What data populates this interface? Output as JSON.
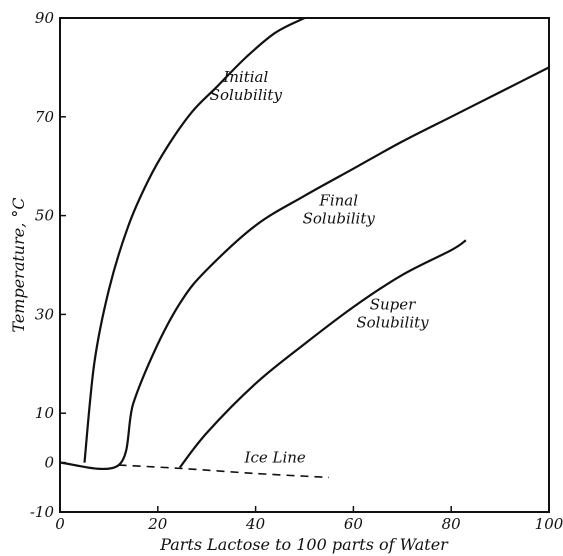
{
  "chart_data": {
    "type": "line",
    "xlabel": "Parts Lactose to 100 parts of Water",
    "ylabel": "Temperature, °C",
    "xlim": [
      0,
      100
    ],
    "ylim": [
      -10,
      90
    ],
    "x_ticks": [
      0,
      20,
      40,
      60,
      80,
      100
    ],
    "y_ticks": [
      -10,
      0,
      10,
      30,
      50,
      70,
      90
    ],
    "x_tick_labels": [
      "0",
      "20",
      "40",
      "60",
      "80",
      "100"
    ],
    "y_tick_labels": [
      "-10",
      "0",
      "10",
      "30",
      "50",
      "70",
      "90"
    ],
    "grid": false,
    "series": [
      {
        "name": "Initial Solubility",
        "label_lines": [
          "Initial",
          "Solubility"
        ],
        "label_at": [
          38,
          77
        ],
        "style": "solid",
        "x": [
          5,
          7,
          10,
          14,
          18,
          22,
          27,
          32,
          38,
          44,
          50
        ],
        "y": [
          0,
          20,
          35,
          48,
          57,
          64,
          71,
          76,
          82,
          87,
          90
        ]
      },
      {
        "name": "Final Solubility",
        "label_lines": [
          "Final",
          "Solubility"
        ],
        "label_at": [
          57,
          52
        ],
        "style": "solid",
        "x": [
          0,
          12,
          15,
          20,
          25,
          30,
          40,
          50,
          60,
          70,
          80,
          90,
          100
        ],
        "y": [
          0,
          -0.5,
          12,
          24,
          33,
          39,
          48,
          54,
          59.5,
          65,
          70,
          75,
          80
        ]
      },
      {
        "name": "Super Solubility",
        "label_lines": [
          "Super",
          "Solubility"
        ],
        "label_at": [
          68,
          31
        ],
        "style": "solid",
        "x": [
          24.5,
          30,
          40,
          50,
          60,
          70,
          80,
          83
        ],
        "y": [
          -1,
          6,
          16,
          24,
          31.5,
          38,
          43,
          45
        ]
      },
      {
        "name": "Ice Line",
        "label_lines": [
          "Ice Line"
        ],
        "label_at": [
          44,
          0
        ],
        "style": "dashed",
        "x": [
          12,
          25,
          40,
          55
        ],
        "y": [
          -0.5,
          -1.2,
          -2.2,
          -3
        ]
      }
    ]
  }
}
